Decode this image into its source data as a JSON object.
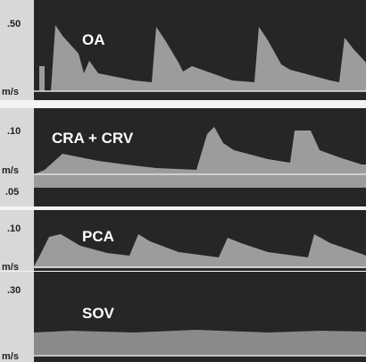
{
  "panels": [
    {
      "scale_top": ".50",
      "label": "OA",
      "unit": "m/s"
    },
    {
      "scale_top": ".10",
      "label": "CRA + CRV",
      "unit": "m/s",
      "scale_bottom": ".05"
    },
    {
      "scale_top": ".10",
      "label": "PCA",
      "unit": "m/s"
    },
    {
      "scale_top": ".30",
      "label": "SOV",
      "unit": "m/s"
    }
  ]
}
